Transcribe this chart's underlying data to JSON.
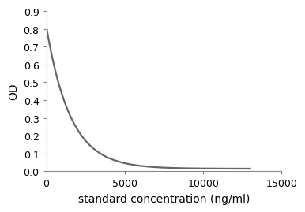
{
  "title": "",
  "xlabel": "standard concentration (ng/ml)",
  "ylabel": "OD",
  "xlim": [
    0,
    15000
  ],
  "ylim": [
    0,
    0.9
  ],
  "xticks": [
    0,
    5000,
    10000,
    15000
  ],
  "yticks": [
    0,
    0.1,
    0.2,
    0.3,
    0.4,
    0.5,
    0.6,
    0.7,
    0.8,
    0.9
  ],
  "line_color": "#666666",
  "line_width": 1.6,
  "background_color": "#ffffff",
  "curve_end_x": 13000,
  "curve_start_y": 0.82,
  "decay_A": 0.8,
  "decay_k": 0.00065,
  "decay_C": 0.015,
  "xlabel_fontsize": 10,
  "ylabel_fontsize": 10,
  "tick_fontsize": 9
}
